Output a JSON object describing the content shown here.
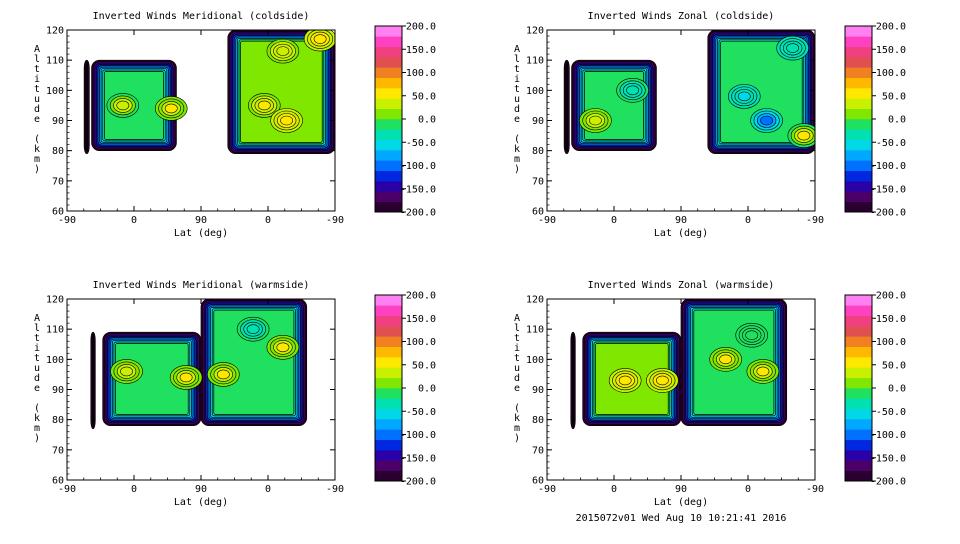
{
  "footer": "2015072v01 Wed Aug 10 10:21:41 2016",
  "colormap": [
    "#2a0030",
    "#4a0068",
    "#2a00a8",
    "#0028e0",
    "#0070ff",
    "#00a8ff",
    "#00d8e8",
    "#00e0b0",
    "#20e060",
    "#80e800",
    "#c8f000",
    "#ffe800",
    "#ffb800",
    "#f08020",
    "#e05050",
    "#f04080",
    "#ff40c0",
    "#ff80f0"
  ],
  "chart_data": [
    {
      "type": "contour",
      "title": "Inverted Winds Meridional (coldside)",
      "xlabel": "Lat (deg)",
      "ylabel": "Altitude (km)",
      "xticks": [
        "-90",
        "0",
        "90",
        "0",
        "-90"
      ],
      "yticks": [
        60,
        70,
        80,
        90,
        100,
        110,
        120
      ],
      "ylim": [
        60,
        120
      ],
      "colorbar_ticks": [
        "200.0",
        "150.0",
        "100.0",
        "50.0",
        "0.0",
        "-50.0",
        "-100.0",
        "-150.0",
        "-200.0"
      ],
      "colorbar_range": [
        -200,
        200
      ],
      "regions": [
        {
          "x": [
            -67,
            -60
          ],
          "y": [
            79,
            110
          ],
          "value": -180
        },
        {
          "x": [
            -57,
            57
          ],
          "y": [
            80,
            110
          ],
          "value": -20
        },
        {
          "x": [
            126,
            270
          ],
          "y": [
            79,
            120
          ],
          "value": 10
        }
      ],
      "features": [
        {
          "lat": -15,
          "alt": 95,
          "value": 40
        },
        {
          "lat": 50,
          "alt": 94,
          "value": 60
        },
        {
          "lat": 175,
          "alt": 95,
          "value": 50
        },
        {
          "lat": 205,
          "alt": 90,
          "value": 60
        },
        {
          "lat": 200,
          "alt": 113,
          "value": 40
        },
        {
          "lat": 250,
          "alt": 117,
          "value": 60
        }
      ]
    },
    {
      "type": "contour",
      "title": "Inverted Winds Zonal (coldside)",
      "xlabel": "Lat (deg)",
      "ylabel": "Altitude (km)",
      "xticks": [
        "-90",
        "0",
        "90",
        "0",
        "-90"
      ],
      "yticks": [
        60,
        70,
        80,
        90,
        100,
        110,
        120
      ],
      "ylim": [
        60,
        120
      ],
      "colorbar_ticks": [
        "200.0",
        "150.0",
        "100.0",
        "50.0",
        "0.0",
        "-50.0",
        "-100.0",
        "-150.0",
        "-200.0"
      ],
      "colorbar_range": [
        -200,
        200
      ],
      "regions": [
        {
          "x": [
            -67,
            -60
          ],
          "y": [
            79,
            110
          ],
          "value": -180
        },
        {
          "x": [
            -57,
            57
          ],
          "y": [
            80,
            110
          ],
          "value": -10
        },
        {
          "x": [
            126,
            270
          ],
          "y": [
            79,
            120
          ],
          "value": -20
        }
      ],
      "features": [
        {
          "lat": -25,
          "alt": 90,
          "value": 40
        },
        {
          "lat": 25,
          "alt": 100,
          "value": -40
        },
        {
          "lat": 175,
          "alt": 98,
          "value": -50
        },
        {
          "lat": 205,
          "alt": 90,
          "value": -90
        },
        {
          "lat": 240,
          "alt": 114,
          "value": -40
        },
        {
          "lat": 255,
          "alt": 85,
          "value": 50
        }
      ]
    },
    {
      "type": "contour",
      "title": "Inverted Winds Meridional (warmside)",
      "xlabel": "Lat (deg)",
      "ylabel": "Altitude (km)",
      "xticks": [
        "-90",
        "0",
        "90",
        "0",
        "-90"
      ],
      "yticks": [
        60,
        70,
        80,
        90,
        100,
        110,
        120
      ],
      "ylim": [
        60,
        120
      ],
      "colorbar_ticks": [
        "200.0",
        "150.0",
        "100.0",
        "50.0",
        "0.0",
        "-50.0",
        "-100.0",
        "-150.0",
        "-200.0"
      ],
      "colorbar_range": [
        -200,
        200
      ],
      "regions": [
        {
          "x": [
            -58,
            -52
          ],
          "y": [
            77,
            109
          ],
          "value": -180
        },
        {
          "x": [
            -42,
            90
          ],
          "y": [
            78,
            109
          ],
          "value": -10
        },
        {
          "x": [
            90,
            232
          ],
          "y": [
            78,
            120
          ],
          "value": -10
        }
      ],
      "features": [
        {
          "lat": -10,
          "alt": 96,
          "value": 40
        },
        {
          "lat": 70,
          "alt": 94,
          "value": 50
        },
        {
          "lat": 120,
          "alt": 95,
          "value": 50
        },
        {
          "lat": 200,
          "alt": 104,
          "value": 50
        },
        {
          "lat": 160,
          "alt": 110,
          "value": -40
        }
      ]
    },
    {
      "type": "contour",
      "title": "Inverted Winds Zonal (warmside)",
      "xlabel": "Lat (deg)",
      "ylabel": "Altitude (km)",
      "xticks": [
        "-90",
        "0",
        "90",
        "0",
        "-90"
      ],
      "yticks": [
        60,
        70,
        80,
        90,
        100,
        110,
        120
      ],
      "ylim": [
        60,
        120
      ],
      "colorbar_ticks": [
        "200.0",
        "150.0",
        "100.0",
        "50.0",
        "0.0",
        "-50.0",
        "-100.0",
        "-150.0",
        "-200.0"
      ],
      "colorbar_range": [
        -200,
        200
      ],
      "regions": [
        {
          "x": [
            -58,
            -52
          ],
          "y": [
            77,
            109
          ],
          "value": -180
        },
        {
          "x": [
            -42,
            90
          ],
          "y": [
            78,
            109
          ],
          "value": 20
        },
        {
          "x": [
            90,
            232
          ],
          "y": [
            78,
            120
          ],
          "value": -10
        }
      ],
      "features": [
        {
          "lat": 15,
          "alt": 93,
          "value": 60
        },
        {
          "lat": 65,
          "alt": 93,
          "value": 60
        },
        {
          "lat": 150,
          "alt": 100,
          "value": 50
        },
        {
          "lat": 200,
          "alt": 96,
          "value": 50
        },
        {
          "lat": 185,
          "alt": 108,
          "value": -20
        }
      ]
    }
  ]
}
